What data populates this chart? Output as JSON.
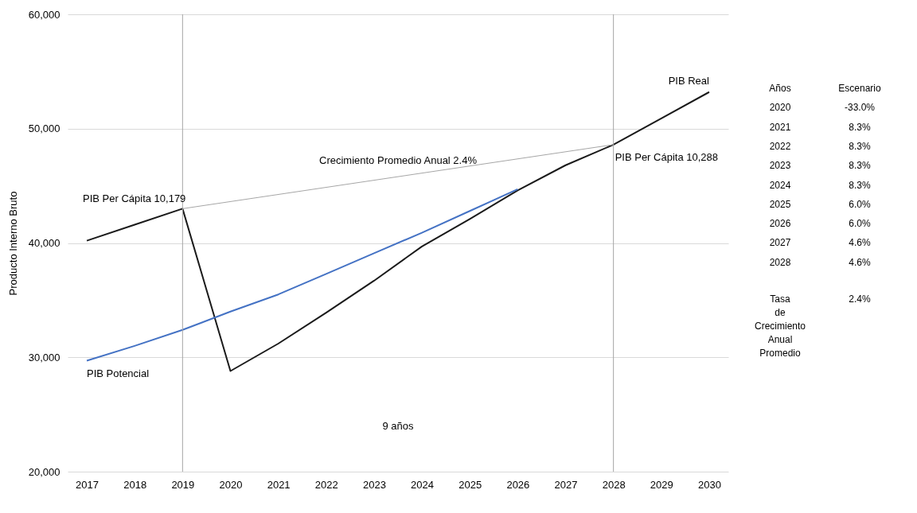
{
  "chart_data": {
    "type": "line",
    "ylabel": "Producto Interno Bruto",
    "x": [
      2017,
      2018,
      2019,
      2020,
      2021,
      2022,
      2023,
      2024,
      2025,
      2026,
      2027,
      2028,
      2029,
      2030
    ],
    "xlim": [
      2016.6,
      2030.4
    ],
    "xticks": [
      2017,
      2018,
      2019,
      2020,
      2021,
      2022,
      2023,
      2024,
      2025,
      2026,
      2027,
      2028,
      2029,
      2030
    ],
    "series": [
      {
        "name": "PIB Real",
        "color": "#1a1a1a",
        "values": [
          40200,
          41600,
          43000,
          28800,
          31200,
          33900,
          36700,
          39700,
          42100,
          44600,
          46800,
          48600,
          50900,
          53200
        ]
      },
      {
        "name": "PIB Potencial",
        "color": "#4472c4",
        "values": [
          29700,
          31000,
          32400,
          34000,
          35500,
          37300,
          39100,
          40900,
          42800,
          44700,
          null,
          null,
          null,
          null
        ]
      },
      {
        "name": "Crecimiento Promedio Anual 2.4%",
        "color": "#a6a6a6",
        "x": [
          2019,
          2028
        ],
        "values": [
          43000,
          48600
        ]
      }
    ],
    "ylim": [
      20000,
      60000
    ],
    "yticks": [
      {
        "value": 20000,
        "label": "20,000"
      },
      {
        "value": 30000,
        "label": "30,000"
      },
      {
        "value": 40000,
        "label": "40,000"
      },
      {
        "value": 50000,
        "label": "50,000"
      },
      {
        "value": 60000,
        "label": "60,000"
      }
    ],
    "grid": "y",
    "ref_lines": [
      {
        "axis": "x",
        "value": 2019,
        "color": "#a6a6a6"
      },
      {
        "axis": "x",
        "value": 2028,
        "color": "#a6a6a6"
      }
    ],
    "annotations": [
      {
        "text": "PIB Per Cápita 10,179",
        "x": 2019,
        "y": 43000
      },
      {
        "text": "PIB Per Cápita 10,288",
        "x": 2028,
        "y": 48600
      },
      "9 años",
      "Años",
      "Escenario",
      "2020",
      "-33.0%",
      "2021",
      "8.3%",
      "2022",
      "8.3%",
      "2023",
      "8.3%",
      "2024",
      "8.3%",
      "2025",
      "6.0%",
      "2026",
      "6.0%",
      "2027",
      "4.6%",
      "2028",
      "4.6%",
      "Tasa de Crecimiento Anual Promedio",
      "2.4%"
    ]
  }
}
